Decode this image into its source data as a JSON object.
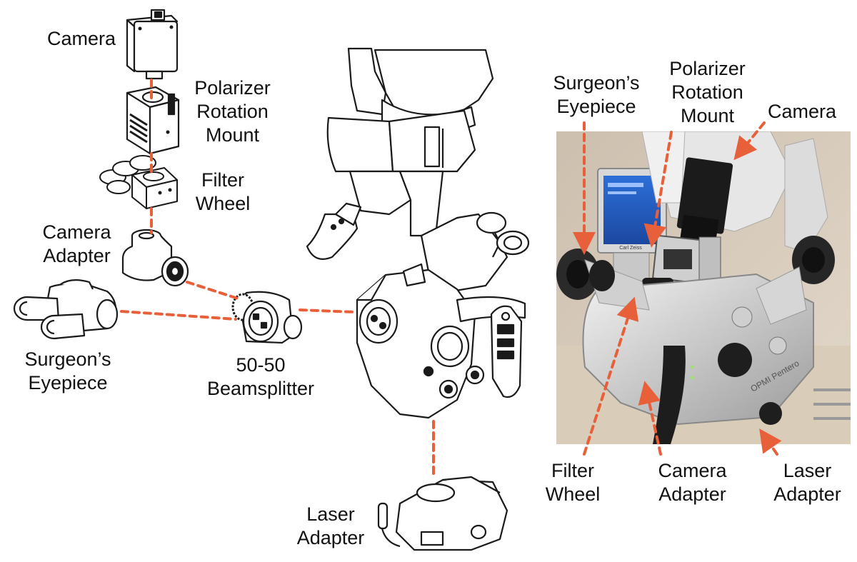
{
  "left_labels": {
    "camera": [
      "Camera"
    ],
    "polarizer": [
      "Polarizer",
      "Rotation",
      "Mount"
    ],
    "filter_wheel": [
      "Filter",
      "Wheel"
    ],
    "camera_adapter": [
      "Camera",
      "Adapter"
    ],
    "surgeons_eyepiece": [
      "Surgeon’s",
      "Eyepiece"
    ],
    "beamsplitter": [
      "50-50",
      "Beamsplitter"
    ],
    "laser_adapter": [
      "Laser",
      "Adapter"
    ]
  },
  "photo": {
    "monitor_text": "Carl Zeiss",
    "brand_label": "OPMI Pentero"
  },
  "right_labels": {
    "surgeons_eyepiece": [
      "Surgeon’s",
      "Eyepiece"
    ],
    "polarizer": [
      "Polarizer",
      "Rotation",
      "Mount"
    ],
    "camera": [
      "Camera"
    ],
    "filter_wheel": [
      "Filter",
      "Wheel"
    ],
    "camera_adapter": [
      "Camera",
      "Adapter"
    ],
    "laser_adapter": [
      "Laser",
      "Adapter"
    ]
  },
  "colors": {
    "connector": "#e8603a",
    "line_art": "#1a1a1a",
    "label_text": "#111111"
  }
}
